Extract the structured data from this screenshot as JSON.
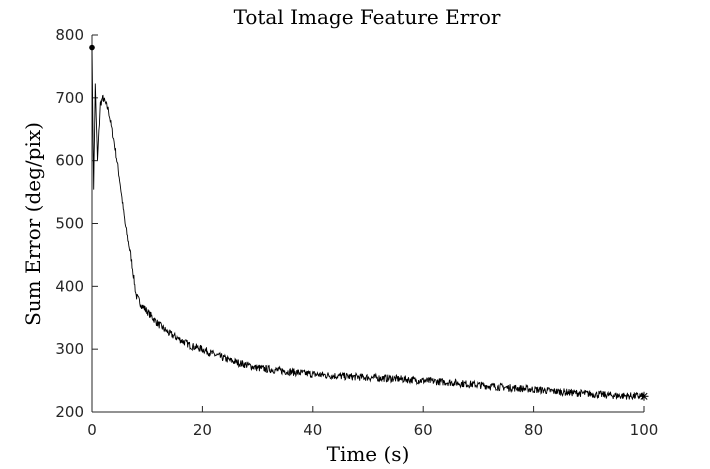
{
  "chart_data": {
    "type": "line",
    "title": "Total Image Feature Error",
    "xlabel": "Time (s)",
    "ylabel": "Sum Error (deg/pix)",
    "xlim": [
      0,
      100
    ],
    "ylim": [
      200,
      800
    ],
    "xticks": [
      0,
      20,
      40,
      60,
      80,
      100
    ],
    "yticks": [
      200,
      300,
      400,
      500,
      600,
      700,
      800
    ],
    "grid": false,
    "series": [
      {
        "x": [
          0,
          0.3,
          0.6,
          1,
          1.5,
          2,
          3,
          4,
          5,
          6,
          7,
          8,
          9,
          10,
          12,
          14,
          16,
          18,
          20,
          22,
          25,
          28,
          30,
          35,
          40,
          45,
          50,
          55,
          60,
          65,
          70,
          75,
          80,
          85,
          90,
          95,
          100
        ],
        "values": [
          780,
          560,
          720,
          600,
          690,
          700,
          680,
          630,
          570,
          500,
          450,
          385,
          370,
          360,
          340,
          325,
          315,
          305,
          300,
          292,
          282,
          275,
          270,
          265,
          260,
          257,
          255,
          253,
          250,
          247,
          243,
          239,
          236,
          232,
          229,
          226,
          225
        ],
        "noise": 6,
        "start_marker": "filled-dot",
        "end_marker": "asterisk",
        "color": "#000000"
      }
    ]
  }
}
